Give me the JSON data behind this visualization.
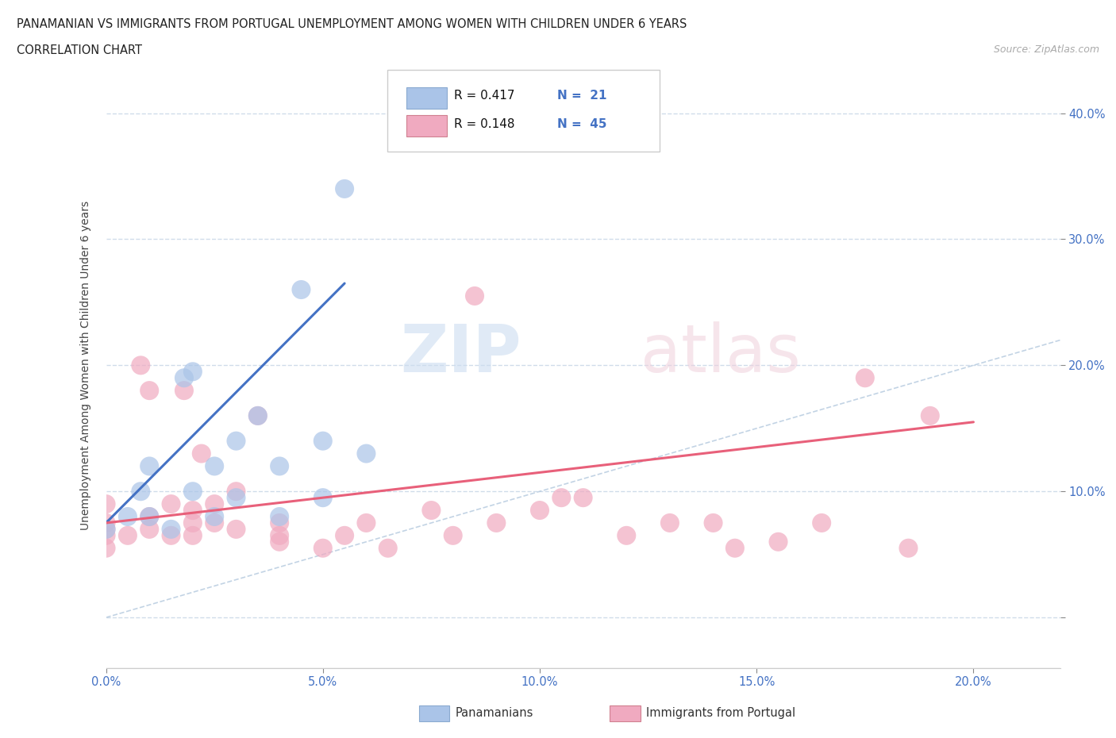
{
  "title_line1": "PANAMANIAN VS IMMIGRANTS FROM PORTUGAL UNEMPLOYMENT AMONG WOMEN WITH CHILDREN UNDER 6 YEARS",
  "title_line2": "CORRELATION CHART",
  "source_text": "Source: ZipAtlas.com",
  "ylabel": "Unemployment Among Women with Children Under 6 years",
  "xlim": [
    0.0,
    0.22
  ],
  "ylim": [
    -0.04,
    0.44
  ],
  "yticks": [
    0.0,
    0.1,
    0.2,
    0.3,
    0.4
  ],
  "xticks": [
    0.0,
    0.05,
    0.1,
    0.15,
    0.2
  ],
  "xtick_labels": [
    "0.0%",
    "5.0%",
    "10.0%",
    "15.0%",
    "20.0%"
  ],
  "ytick_labels_right": [
    "",
    "10.0%",
    "20.0%",
    "30.0%",
    "40.0%"
  ],
  "color_blue": "#aac4e8",
  "color_pink": "#f0aac0",
  "line_blue": "#4472c4",
  "line_pink": "#e8607a",
  "diagonal_color": "#b0c8e0",
  "label1": "Panamanians",
  "label2": "Immigrants from Portugal",
  "blue_x": [
    0.0,
    0.005,
    0.008,
    0.01,
    0.01,
    0.015,
    0.018,
    0.02,
    0.02,
    0.025,
    0.025,
    0.03,
    0.03,
    0.035,
    0.04,
    0.04,
    0.045,
    0.05,
    0.05,
    0.055,
    0.06
  ],
  "blue_y": [
    0.07,
    0.08,
    0.1,
    0.08,
    0.12,
    0.07,
    0.19,
    0.1,
    0.195,
    0.08,
    0.12,
    0.095,
    0.14,
    0.16,
    0.08,
    0.12,
    0.26,
    0.095,
    0.14,
    0.34,
    0.13
  ],
  "pink_x": [
    0.0,
    0.0,
    0.0,
    0.0,
    0.0,
    0.005,
    0.008,
    0.01,
    0.01,
    0.01,
    0.015,
    0.015,
    0.018,
    0.02,
    0.02,
    0.02,
    0.022,
    0.025,
    0.025,
    0.03,
    0.03,
    0.035,
    0.04,
    0.04,
    0.04,
    0.05,
    0.055,
    0.06,
    0.065,
    0.075,
    0.08,
    0.085,
    0.09,
    0.1,
    0.105,
    0.11,
    0.12,
    0.13,
    0.14,
    0.145,
    0.155,
    0.165,
    0.175,
    0.185,
    0.19
  ],
  "pink_y": [
    0.065,
    0.075,
    0.09,
    0.055,
    0.07,
    0.065,
    0.2,
    0.07,
    0.08,
    0.18,
    0.065,
    0.09,
    0.18,
    0.065,
    0.075,
    0.085,
    0.13,
    0.075,
    0.09,
    0.07,
    0.1,
    0.16,
    0.06,
    0.065,
    0.075,
    0.055,
    0.065,
    0.075,
    0.055,
    0.085,
    0.065,
    0.255,
    0.075,
    0.085,
    0.095,
    0.095,
    0.065,
    0.075,
    0.075,
    0.055,
    0.06,
    0.075,
    0.19,
    0.055,
    0.16
  ],
  "blue_line_x": [
    0.0,
    0.055
  ],
  "blue_line_y": [
    0.075,
    0.265
  ],
  "pink_line_x": [
    0.0,
    0.2
  ],
  "pink_line_y": [
    0.075,
    0.155
  ],
  "grid_color": "#d0dcea",
  "bg_color": "#ffffff"
}
